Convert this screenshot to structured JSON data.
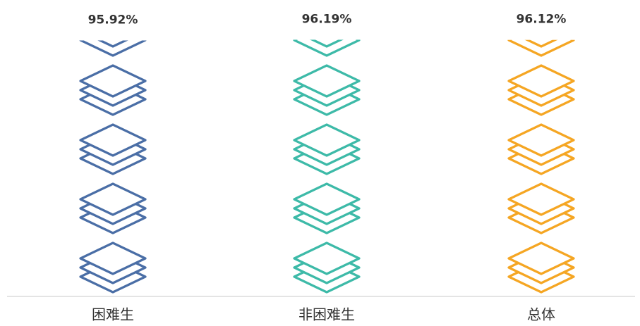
{
  "chart_data": {
    "type": "pictorial-bar",
    "categories": [
      "困难生",
      "非困难生",
      "总体"
    ],
    "values": [
      95.92,
      96.19,
      96.12
    ],
    "value_labels": [
      "95.92%",
      "96.19%",
      "96.12%"
    ],
    "colors": [
      "#4a6ea6",
      "#3dbaa8",
      "#f5a623"
    ],
    "ylim": [
      0,
      100
    ]
  }
}
